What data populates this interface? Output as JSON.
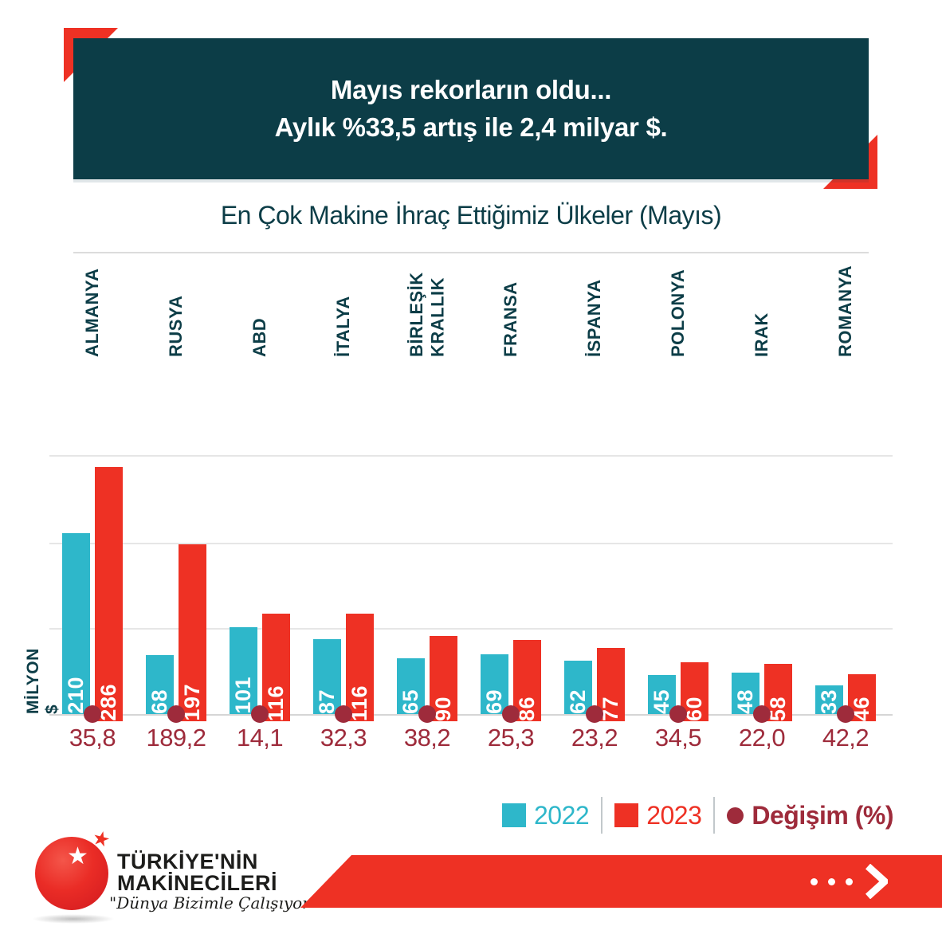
{
  "header": {
    "title_line1": "Mayıs rekorların oldu...",
    "title_line2": "Aylık %33,5 artış ile 2,4 milyar $."
  },
  "chart": {
    "title": "En Çok Makine İhraç Ettiğimiz Ülkeler (Mayıs)",
    "y_axis_label": "MİLYON $",
    "legend": {
      "items": [
        {
          "label": "2022",
          "marker": "square",
          "color": "#2eb7ca"
        },
        {
          "label": "2023",
          "marker": "square",
          "color": "#ee3124"
        },
        {
          "label": "Değişim (%)",
          "marker": "circle",
          "color": "#9e2b3b"
        }
      ]
    }
  },
  "chart_data": {
    "type": "bar",
    "categories": [
      "ALMANYA",
      "RUSYA",
      "ABD",
      "İTALYA",
      "BİRLEŞİK KRALLIK",
      "FRANSA",
      "İSPANYA",
      "POLONYA",
      "IRAK",
      "ROMANYA"
    ],
    "series": [
      {
        "name": "2022",
        "color": "#2eb7ca",
        "values": [
          210,
          68,
          101,
          87,
          65,
          69,
          62,
          45,
          48,
          33
        ]
      },
      {
        "name": "2023",
        "color": "#ee3124",
        "values": [
          286,
          197,
          116,
          116,
          90,
          86,
          77,
          60,
          58,
          46
        ]
      }
    ],
    "change_percent": {
      "name": "Değişim (%)",
      "color": "#9e2b3b",
      "values": [
        "35,8",
        "189,2",
        "14,1",
        "32,3",
        "38,2",
        "25,3",
        "23,2",
        "34,5",
        "22,0",
        "42,2"
      ]
    },
    "title": "En Çok Makine İhraç Ettiğimiz Ülkeler (Mayıs)",
    "xlabel": "",
    "ylabel": "MİLYON $",
    "ylim": [
      0,
      300
    ],
    "gridline_values": [
      100,
      200,
      300
    ],
    "grid": true,
    "legend_position": "bottom",
    "bar_value_labels": "inside-bottom-rotated"
  },
  "footer": {
    "logo": {
      "line1": "TÜRKİYE'NİN",
      "line2": "MAKİNECİLERİ",
      "slogan": "\"Dünya Bizimle Çalışıyor\""
    }
  },
  "colors": {
    "header_background": "#0c3d47",
    "accent_red": "#ee3124",
    "teal_2022": "#2eb7ca",
    "red_2023": "#ee3124",
    "maroon_change": "#9e2b3b",
    "gridline": "#e6e6e6",
    "text_dark_teal": "#0c3d47"
  }
}
